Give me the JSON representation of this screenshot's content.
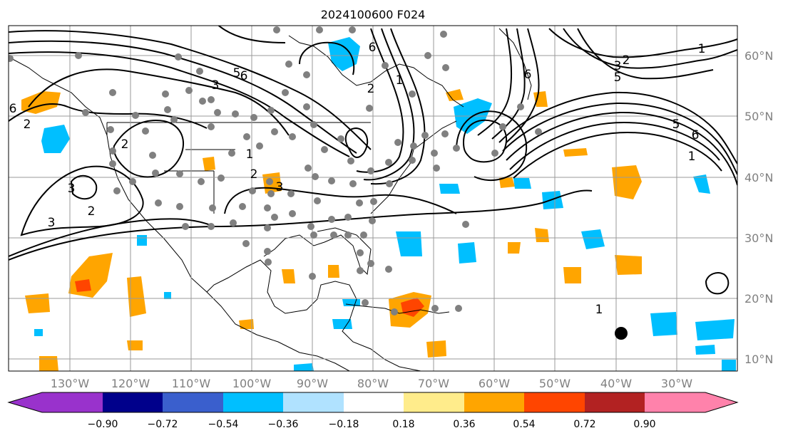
{
  "title": "2024100600 F024",
  "lat_labels": [
    "60°N",
    "50°N",
    "40°N",
    "30°N",
    "20°N",
    "10°N"
  ],
  "lon_labels": [
    "130°W",
    "120°W",
    "110°W",
    "100°W",
    "90°W",
    "80°W",
    "70°W",
    "60°W",
    "50°W",
    "40°W",
    "30°W"
  ],
  "colorbar": {
    "ticks": [
      "−0.90",
      "−0.72",
      "−0.54",
      "−0.36",
      "−0.18",
      "0.18",
      "0.36",
      "0.54",
      "0.72",
      "0.90"
    ],
    "colors": [
      "#9932cc",
      "#00008b",
      "#3a5fcd",
      "#00bfff",
      "#b0e2ff",
      "#ffffff",
      "#ffec8b",
      "#ffa500",
      "#ff4500",
      "#b22222",
      "#ff82ab"
    ]
  },
  "contour_labels": [
    "6",
    "2",
    "3",
    "6",
    "5",
    "2",
    "3",
    "3",
    "2",
    "2",
    "3",
    "1",
    "6",
    "2",
    "1",
    "2",
    "3",
    "5",
    "1",
    "6",
    "5",
    "6",
    "1",
    "1"
  ]
}
